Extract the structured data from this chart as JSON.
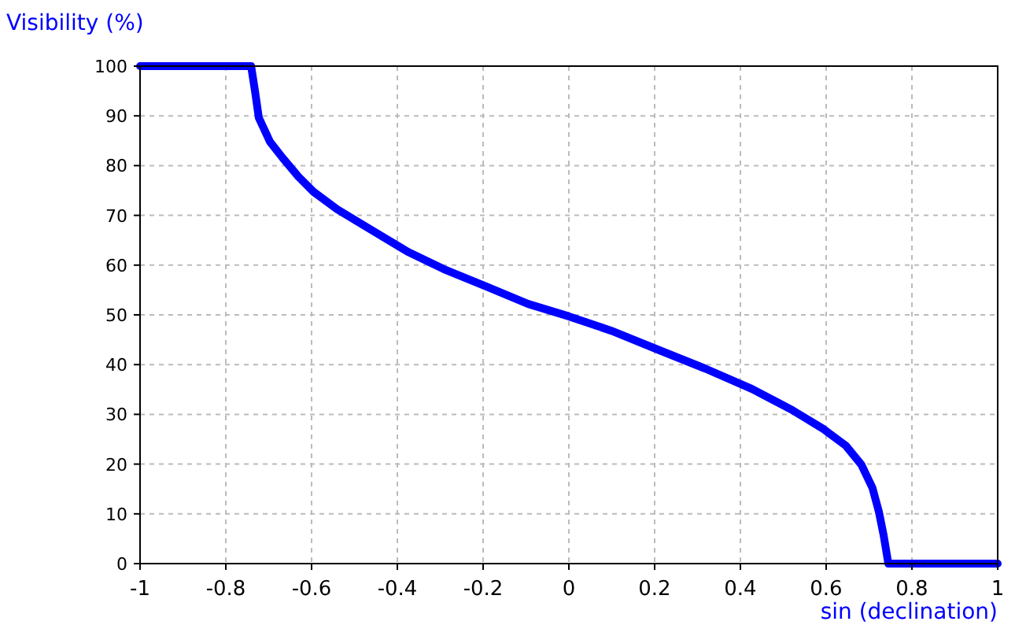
{
  "chart_data": {
    "type": "line",
    "ylabel": "Visibility (%)",
    "xlabel": "sin (declination)",
    "xlim": [
      -1,
      1
    ],
    "ylim": [
      0,
      100
    ],
    "xticks": [
      -1,
      -0.8,
      -0.6,
      -0.4,
      -0.2,
      0,
      0.2,
      0.4,
      0.6,
      0.8,
      1
    ],
    "yticks": [
      0,
      10,
      20,
      30,
      40,
      50,
      60,
      70,
      80,
      90,
      100
    ],
    "grid": true,
    "line_style": "solid",
    "series": [
      {
        "color": "#0000ff",
        "x": [
          -1,
          -0.741,
          -0.732,
          -0.723,
          -0.697,
          -0.668,
          -0.631,
          -0.595,
          -0.54,
          -0.467,
          -0.376,
          -0.292,
          -0.193,
          -0.095,
          0,
          0.099,
          0.208,
          0.318,
          0.427,
          0.518,
          0.591,
          0.646,
          0.682,
          0.708,
          0.723,
          0.734,
          0.745,
          1
        ],
        "values": [
          100,
          100,
          95,
          89.6,
          84.8,
          81.6,
          77.8,
          74.7,
          71.2,
          67.4,
          62.7,
          59.2,
          55.7,
          52.2,
          49.7,
          46.8,
          43,
          39.2,
          35.1,
          31,
          27.2,
          23.7,
          19.9,
          15.2,
          10.4,
          5.7,
          0,
          0
        ]
      }
    ]
  }
}
